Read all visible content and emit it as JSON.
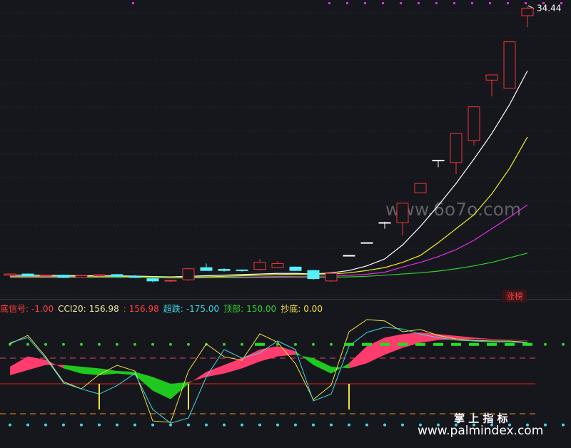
{
  "chart_data": [
    {
      "type": "candlestick",
      "ylim": [
        9.5,
        35
      ],
      "grid": true,
      "up_color": "#f0353a",
      "down_color": "#54f0ff",
      "flat_color": "#ffffff",
      "candles": [
        {
          "open": 11.3,
          "high": 11.45,
          "low": 11.2,
          "close": 11.4
        },
        {
          "open": 11.4,
          "high": 11.45,
          "low": 11.2,
          "close": 11.25
        },
        {
          "open": 11.25,
          "high": 11.35,
          "low": 11.15,
          "close": 11.3
        },
        {
          "open": 11.3,
          "high": 11.35,
          "low": 11.05,
          "close": 11.1
        },
        {
          "open": 11.1,
          "high": 11.3,
          "low": 11.05,
          "close": 11.25
        },
        {
          "open": 11.25,
          "high": 11.4,
          "low": 11.15,
          "close": 11.35
        },
        {
          "open": 11.35,
          "high": 11.4,
          "low": 11.15,
          "close": 11.2
        },
        {
          "open": 11.2,
          "high": 11.3,
          "low": 11.05,
          "close": 11.1
        },
        {
          "open": 11.0,
          "high": 11.05,
          "low": 10.7,
          "close": 10.8
        },
        {
          "open": 10.8,
          "high": 10.9,
          "low": 10.7,
          "close": 10.85
        },
        {
          "open": 10.9,
          "high": 11.95,
          "low": 10.8,
          "close": 11.85
        },
        {
          "open": 11.95,
          "high": 12.3,
          "low": 11.7,
          "close": 11.7
        },
        {
          "open": 11.8,
          "high": 11.9,
          "low": 11.6,
          "close": 11.7
        },
        {
          "open": 11.75,
          "high": 11.8,
          "low": 11.6,
          "close": 11.7
        },
        {
          "open": 11.8,
          "high": 12.7,
          "low": 11.7,
          "close": 12.4
        },
        {
          "open": 11.95,
          "high": 12.5,
          "low": 11.9,
          "close": 12.3
        },
        {
          "open": 12.0,
          "high": 12.05,
          "low": 11.65,
          "close": 11.7
        },
        {
          "open": 11.7,
          "high": 11.75,
          "low": 10.9,
          "close": 11.0
        },
        {
          "open": 10.8,
          "high": 11.5,
          "low": 10.7,
          "close": 11.45
        },
        {
          "open": 13.0,
          "high": 13.0,
          "low": 13.0,
          "close": 13.0
        },
        {
          "open": 14.1,
          "high": 14.1,
          "low": 14.1,
          "close": 14.1
        },
        {
          "open": 15.83,
          "high": 15.9,
          "low": 15.3,
          "close": 15.83
        },
        {
          "open": 15.83,
          "high": 17.5,
          "low": 14.7,
          "close": 17.5
        },
        {
          "open": 18.4,
          "high": 19.2,
          "low": 18.4,
          "close": 19.2
        },
        {
          "open": 21.2,
          "high": 21.2,
          "low": 20.6,
          "close": 21.2
        },
        {
          "open": 21.0,
          "high": 23.5,
          "low": 20.0,
          "close": 23.5
        },
        {
          "open": 22.9,
          "high": 25.8,
          "low": 22.5,
          "close": 25.8
        },
        {
          "open": 28.1,
          "high": 28.55,
          "low": 26.7,
          "close": 28.55
        },
        {
          "open": 27.4,
          "high": 31.4,
          "low": 27.4,
          "close": 31.4
        },
        {
          "open": 33.65,
          "high": 34.44,
          "low": 32.66,
          "close": 34.3
        }
      ],
      "series": [
        {
          "color": "#ffffff",
          "values": [
            11.3,
            11.3,
            11.28,
            11.27,
            11.25,
            11.25,
            11.24,
            11.22,
            11.18,
            11.15,
            11.2,
            11.25,
            11.3,
            11.35,
            11.4,
            11.45,
            11.45,
            11.4,
            11.5,
            11.7,
            12.1,
            12.7,
            13.9,
            15.5,
            17.3,
            19.2,
            21.3,
            23.5,
            26.0,
            28.9
          ]
        },
        {
          "color": "#f0f020",
          "values": [
            11.2,
            11.2,
            11.2,
            11.2,
            11.2,
            11.2,
            11.2,
            11.18,
            11.15,
            11.12,
            11.12,
            11.15,
            11.2,
            11.25,
            11.3,
            11.35,
            11.38,
            11.38,
            11.4,
            11.5,
            11.7,
            11.95,
            12.4,
            13.0,
            14.1,
            15.3,
            16.5,
            18.3,
            20.5,
            23.2
          ]
        },
        {
          "color": "#e030e0",
          "values": [
            11.15,
            11.15,
            11.15,
            11.15,
            11.14,
            11.14,
            11.13,
            11.12,
            11.1,
            11.08,
            11.08,
            11.1,
            11.12,
            11.14,
            11.16,
            11.18,
            11.2,
            11.2,
            11.22,
            11.28,
            11.38,
            11.55,
            12.0,
            12.4,
            12.9,
            13.5,
            14.3,
            15.3,
            16.3,
            17.36
          ]
        },
        {
          "color": "#30d030",
          "values": [
            11.1,
            11.1,
            11.1,
            11.1,
            11.1,
            11.1,
            11.1,
            11.1,
            11.08,
            11.06,
            11.06,
            11.07,
            11.08,
            11.09,
            11.1,
            11.1,
            11.11,
            11.11,
            11.12,
            11.15,
            11.2,
            11.3,
            11.4,
            11.5,
            11.65,
            11.85,
            12.1,
            12.4,
            12.8,
            13.2
          ]
        }
      ],
      "badge": "涨榜"
    },
    {
      "type": "indicator",
      "ylim": [
        -375,
        450
      ],
      "legend": [
        {
          "name": "底信号:",
          "value": -1,
          "value_label": "-1.00",
          "color": "#ff4040"
        },
        {
          "name": "CCI20:",
          "value": 156.98,
          "color": "#f0e8a0"
        },
        {
          "name": ":",
          "value": 156.98,
          "color": "#ff4040"
        },
        {
          "name": "超跌:",
          "value": -175,
          "value_label": "-175.00",
          "color": "#40d8e8"
        },
        {
          "name": "顶部:",
          "value": 150,
          "value_label": "150.00",
          "color": "#30d030"
        },
        {
          "name": "抄底:",
          "value": 0,
          "value_label": "0.00",
          "color": "#f0e040"
        }
      ],
      "series": [
        {
          "color": "#f0e040",
          "values": [
            233,
            283,
            158,
            12,
            -29,
            54,
            108,
            75,
            -217,
            -225,
            75,
            233,
            158,
            137,
            292,
            242,
            117,
            -92,
            -8,
            304,
            375,
            367,
            304,
            317,
            283,
            262,
            254,
            250,
            250,
            242
          ]
        },
        {
          "color": "#40d8e8",
          "values": [
            240,
            270,
            150,
            5,
            -30,
            -60,
            -10,
            60,
            -150,
            -230,
            -200,
            40,
            200,
            150,
            180,
            250,
            200,
            -100,
            -60,
            220,
            300,
            330,
            320,
            290,
            270,
            255,
            250,
            245,
            245,
            240
          ]
        }
      ],
      "band": {
        "up_color": "#ff3c6e",
        "down_color": "#1ec81e",
        "fast": [
          100,
          160,
          140,
          90,
          60,
          50,
          60,
          50,
          -40,
          -90,
          0,
          70,
          110,
          150,
          200,
          220,
          190,
          110,
          60,
          120,
          220,
          270,
          290,
          300,
          290,
          280,
          270,
          262,
          258,
          252
        ],
        "slow": [
          50,
          80,
          110,
          110,
          100,
          90,
          75,
          70,
          40,
          0,
          10,
          40,
          60,
          90,
          130,
          160,
          170,
          150,
          100,
          90,
          120,
          170,
          210,
          240,
          255,
          260,
          262,
          258,
          255,
          250
        ]
      },
      "levels": [
        {
          "value": 230,
          "color": "#30d030",
          "style": "dots"
        },
        {
          "value": 150,
          "color": "#e0407a",
          "style": "dashed"
        },
        {
          "value": 0,
          "color": "#e02020",
          "style": "solid"
        },
        {
          "value": -175,
          "color": "#e89020",
          "style": "dashed"
        },
        {
          "value": -240,
          "color": "#40d8e8",
          "style": "dots"
        }
      ],
      "top_signal": [
        null,
        null,
        null,
        null,
        null,
        null,
        null,
        null,
        null,
        null,
        null,
        null,
        null,
        null,
        230,
        null,
        null,
        null,
        null,
        230,
        230,
        230,
        230,
        230,
        230,
        230,
        230,
        230,
        230,
        230
      ],
      "top_signal_color": "#20e020",
      "bottom_signal": [
        null,
        null,
        null,
        null,
        null,
        -150,
        null,
        null,
        null,
        null,
        -150,
        null,
        null,
        null,
        null,
        null,
        null,
        null,
        null,
        -150,
        null,
        null,
        null,
        null,
        null,
        null,
        null,
        null,
        null,
        null
      ],
      "bottom_signal_color": "#f0e040"
    }
  ],
  "watermarks": {
    "site": "www.6o7o.com",
    "brand": "掌 上 指 标",
    "brand_site": "www.palmindex.com"
  }
}
